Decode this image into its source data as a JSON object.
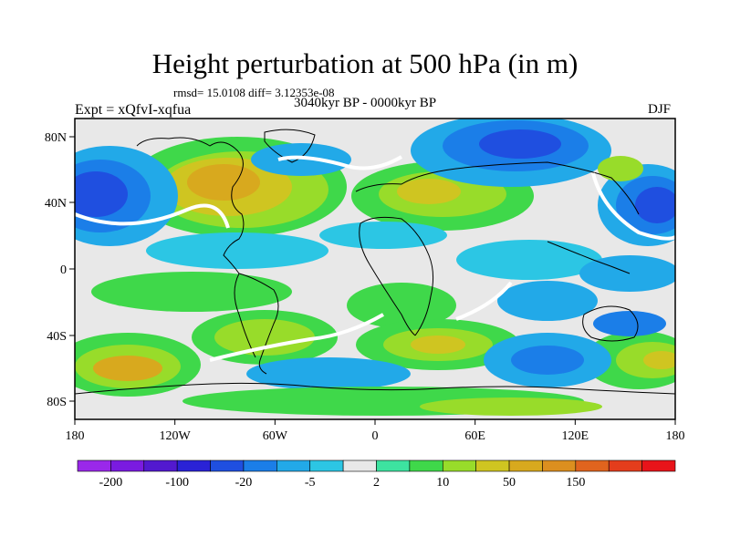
{
  "title": "Height perturbation at 500 hPa (in m)",
  "stats": "rmsd= 15.0108 diff= 3.12353e-08",
  "experiment": "Expt = xQfvI-xqfua",
  "period": "3040kyr BP - 0000kyr BP",
  "season": "DJF",
  "lat_ticks": [
    "80N",
    "40N",
    "0",
    "40S",
    "80S"
  ],
  "lon_ticks": [
    "180",
    "120W",
    "60W",
    "0",
    "60E",
    "120E",
    "180"
  ],
  "colorbar": {
    "colors": [
      "#9a28ea",
      "#7a1be0",
      "#5219cf",
      "#2a22d6",
      "#1f4fe0",
      "#1b7ee8",
      "#22a9e8",
      "#2cc6e4",
      "#e8e8e8",
      "#3de3a0",
      "#3fd84a",
      "#98dc2a",
      "#cfc521",
      "#d8a91e",
      "#dc8f1f",
      "#e0641e",
      "#e43d1c",
      "#e8141a"
    ],
    "labels": [
      "-200",
      "-100",
      "-20",
      "-5",
      "2",
      "10",
      "50",
      "150"
    ]
  },
  "palette": {
    "deep_neg": "#2a3fd8",
    "mid_neg": "#1b7ee8",
    "light_neg": "#2cc6e4",
    "neutral": "#e8e8e8",
    "light_pos": "#3fd84a",
    "mid_pos": "#98dc2a",
    "high_pos": "#cfc521",
    "peak_pos": "#d8a91e",
    "coast": "#000000"
  }
}
